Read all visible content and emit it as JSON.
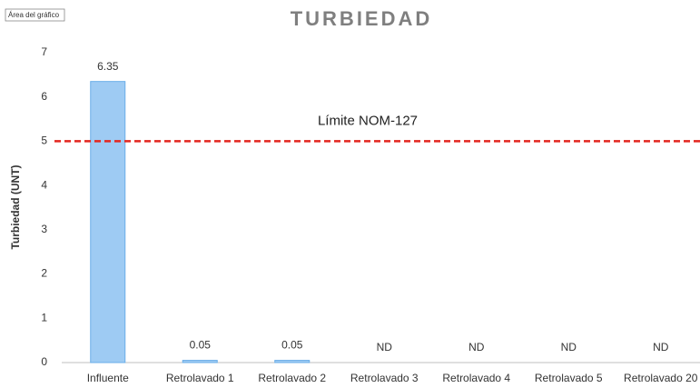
{
  "tooltip": "Área del gráfico",
  "chart_data": {
    "type": "bar",
    "title": "TURBIEDAD",
    "y_label": "Turbiedad (UNT)",
    "categories": [
      "Influente",
      "Retrolavado 1",
      "Retrolavado 2",
      "Retrolavado 3",
      "Retrolavado 4",
      "Retrolavado 5",
      "Retrolavado 20"
    ],
    "values": [
      6.35,
      0.05,
      0.05,
      null,
      null,
      null,
      null
    ],
    "value_labels": [
      "6.35",
      "0.05",
      "0.05",
      "ND",
      "ND",
      "ND",
      "ND"
    ],
    "color": "#9ecbf3",
    "ylim": [
      0,
      7
    ],
    "yticks": [
      0,
      1,
      2,
      3,
      4,
      5,
      6,
      7
    ],
    "grid": false,
    "reference_line": {
      "value": 5,
      "label": "Límite NOM-127",
      "color": "#e3261f"
    }
  }
}
